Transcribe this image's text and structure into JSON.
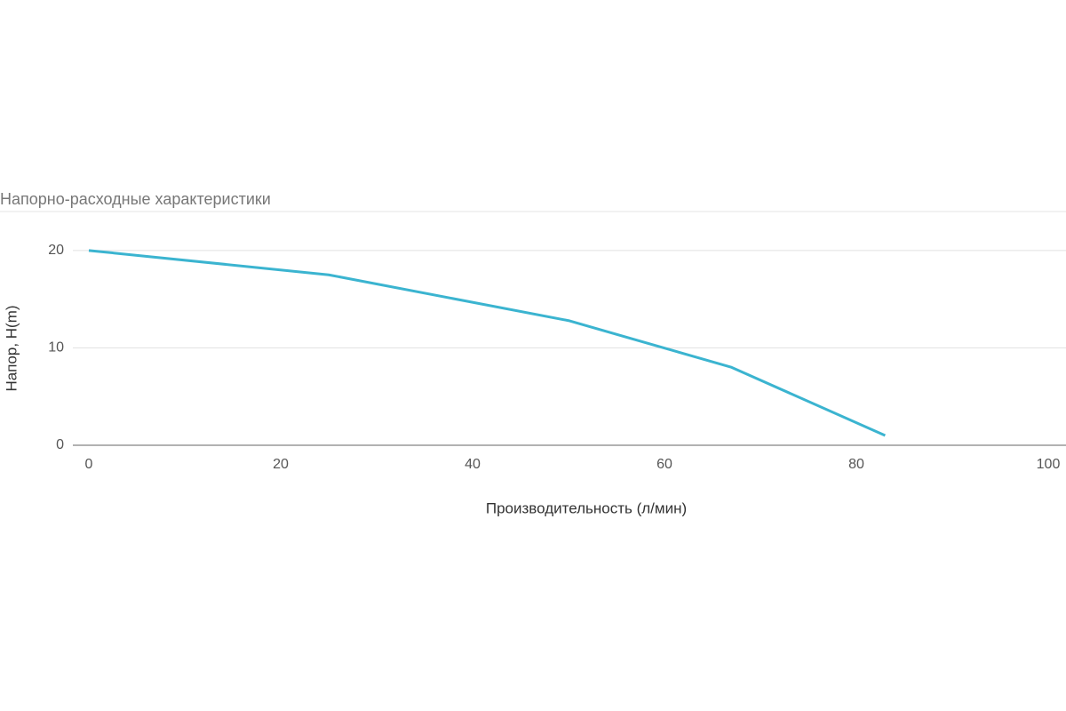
{
  "chart_data": {
    "type": "line",
    "title": "Напорно-расходные характеристики",
    "x_label": "Производительность (л/мин)",
    "y_label": "Напор, H(m)",
    "x": [
      0,
      25,
      50,
      67,
      83
    ],
    "series": [
      {
        "color": "#3bb4d0",
        "values": [
          20,
          17.5,
          12.8,
          8,
          1
        ]
      }
    ],
    "xlim": [
      0,
      100
    ],
    "xticks": [
      0,
      20,
      40,
      60,
      80,
      100
    ],
    "ylim": [
      0,
      24
    ],
    "yticks": [
      0,
      10,
      20
    ],
    "grid": true
  }
}
